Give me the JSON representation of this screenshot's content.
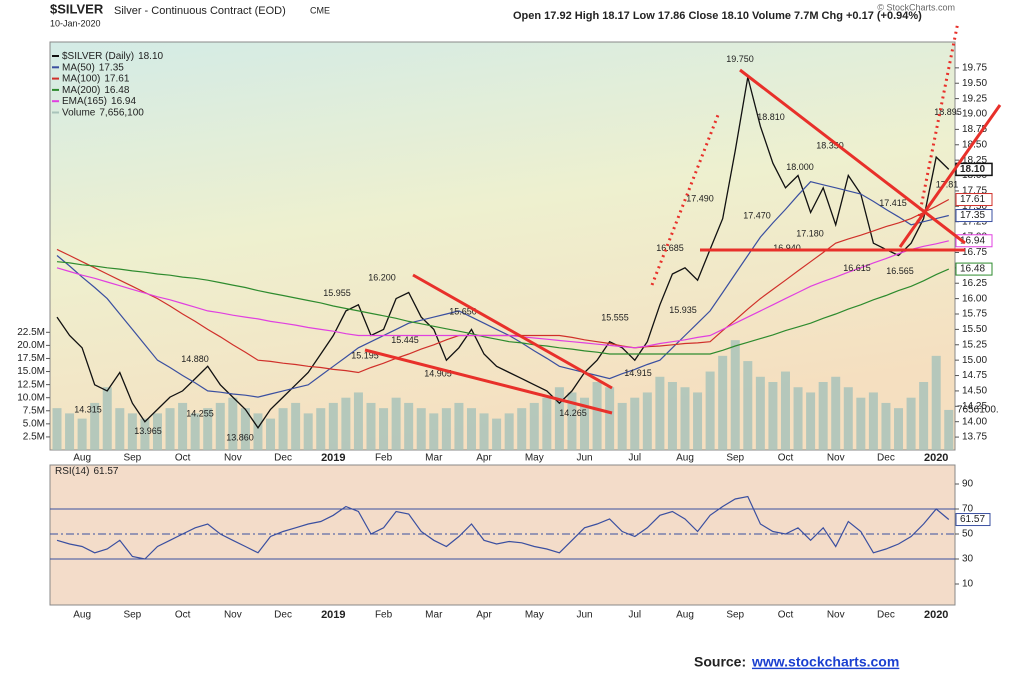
{
  "header": {
    "symbol": "$SILVER",
    "subtitle": "Silver - Continuous Contract (EOD)",
    "exchange": "CME",
    "date": "10-Jan-2020",
    "quote": "Open 17.92 High 18.17 Low 17.86 Close 18.10 Volume 7.7M Chg +0.17 (+0.94%)",
    "copyright": "© StockCharts.com"
  },
  "chart_data": [
    {
      "type": "line",
      "grid": false,
      "categories": [
        null,
        null,
        "Aug",
        null,
        null,
        null,
        "Sep",
        null,
        null,
        null,
        "Oct",
        null,
        null,
        null,
        "Nov",
        null,
        null,
        null,
        "Dec",
        null,
        null,
        null,
        "2019",
        null,
        null,
        null,
        "Feb",
        null,
        null,
        null,
        "Mar",
        null,
        null,
        null,
        "Apr",
        null,
        null,
        null,
        "May",
        null,
        null,
        null,
        "Jun",
        null,
        null,
        null,
        "Jul",
        null,
        null,
        null,
        "Aug",
        null,
        null,
        null,
        "Sep",
        null,
        null,
        null,
        "Oct",
        null,
        null,
        null,
        "Nov",
        null,
        null,
        null,
        "Dec",
        null,
        null,
        null,
        "2020",
        null
      ],
      "series": [
        {
          "name": "$SILVER (Daily)",
          "last_label": "18.10",
          "color": "#111111",
          "values": [
            15.7,
            15.4,
            15.2,
            14.6,
            14.5,
            14.8,
            14.3,
            14.0,
            14.2,
            14.4,
            14.5,
            14.7,
            14.9,
            14.6,
            14.4,
            14.2,
            13.9,
            14.2,
            14.4,
            14.6,
            14.8,
            15.1,
            15.4,
            15.8,
            15.9,
            15.4,
            15.5,
            16.0,
            16.1,
            15.7,
            15.5,
            15.0,
            15.2,
            15.5,
            15.1,
            14.9,
            14.8,
            14.7,
            14.6,
            14.5,
            14.3,
            14.5,
            14.8,
            15.0,
            15.3,
            15.2,
            15.0,
            15.3,
            15.9,
            16.4,
            16.5,
            16.3,
            16.8,
            17.3,
            18.4,
            19.6,
            18.8,
            18.2,
            17.8,
            18.0,
            17.4,
            17.8,
            17.2,
            18.0,
            17.7,
            16.9,
            16.8,
            16.7,
            16.9,
            17.3,
            18.3,
            18.1
          ]
        },
        {
          "name": "MA(50)",
          "last_label": "17.35",
          "color": "#3a4fa0",
          "values": [
            16.7,
            16.53,
            16.35,
            16.18,
            16.0,
            15.75,
            15.5,
            15.25,
            15.0,
            14.88,
            14.75,
            14.63,
            14.5,
            14.48,
            14.45,
            14.43,
            14.4,
            14.45,
            14.5,
            14.55,
            14.6,
            14.75,
            14.9,
            15.05,
            15.2,
            15.3,
            15.4,
            15.5,
            15.6,
            15.65,
            15.7,
            15.75,
            15.8,
            15.7,
            15.6,
            15.5,
            15.4,
            15.28,
            15.15,
            15.03,
            14.9,
            14.85,
            14.8,
            14.75,
            14.7,
            14.78,
            14.85,
            14.93,
            15.0,
            15.2,
            15.4,
            15.6,
            15.8,
            16.1,
            16.4,
            16.7,
            17.0,
            17.23,
            17.45,
            17.68,
            17.9,
            17.85,
            17.8,
            17.75,
            17.7,
            17.58,
            17.45,
            17.33,
            17.2,
            17.25,
            17.3,
            17.35
          ]
        },
        {
          "name": "MA(100)",
          "last_label": "17.61",
          "color": "#d0302a",
          "values": [
            16.8,
            16.7,
            16.6,
            16.5,
            16.4,
            16.3,
            16.2,
            16.1,
            16.0,
            15.88,
            15.75,
            15.63,
            15.5,
            15.38,
            15.25,
            15.13,
            15.0,
            14.98,
            14.95,
            14.93,
            14.9,
            14.88,
            14.85,
            14.83,
            14.8,
            14.88,
            14.95,
            15.03,
            15.1,
            15.18,
            15.25,
            15.33,
            15.4,
            15.4,
            15.4,
            15.4,
            15.4,
            15.4,
            15.4,
            15.4,
            15.4,
            15.37,
            15.33,
            15.3,
            15.27,
            15.23,
            15.2,
            15.22,
            15.23,
            15.25,
            15.27,
            15.28,
            15.3,
            15.48,
            15.65,
            15.83,
            16.0,
            16.15,
            16.3,
            16.45,
            16.6,
            16.75,
            16.9,
            16.97,
            17.03,
            17.1,
            17.17,
            17.23,
            17.3,
            17.4,
            17.5,
            17.61
          ]
        },
        {
          "name": "MA(200)",
          "last_label": "16.48",
          "color": "#2e8b2e",
          "values": [
            16.6,
            16.58,
            16.55,
            16.53,
            16.5,
            16.48,
            16.45,
            16.43,
            16.4,
            16.38,
            16.35,
            16.33,
            16.3,
            16.26,
            16.22,
            16.18,
            16.13,
            16.09,
            16.05,
            16.01,
            15.97,
            15.93,
            15.88,
            15.84,
            15.8,
            15.76,
            15.72,
            15.68,
            15.63,
            15.59,
            15.55,
            15.51,
            15.47,
            15.43,
            15.38,
            15.34,
            15.3,
            15.28,
            15.25,
            15.23,
            15.2,
            15.18,
            15.15,
            15.13,
            15.1,
            15.1,
            15.1,
            15.1,
            15.1,
            15.1,
            15.1,
            15.1,
            15.1,
            15.16,
            15.23,
            15.29,
            15.35,
            15.41,
            15.48,
            15.54,
            15.6,
            15.68,
            15.75,
            15.83,
            15.9,
            15.98,
            16.05,
            16.13,
            16.2,
            16.29,
            16.39,
            16.48
          ]
        },
        {
          "name": "EMA(165)",
          "last_label": "16.94",
          "color": "#e040e0",
          "values": [
            16.5,
            16.44,
            16.38,
            16.33,
            16.27,
            16.21,
            16.15,
            16.09,
            16.03,
            15.98,
            15.92,
            15.86,
            15.8,
            15.77,
            15.73,
            15.7,
            15.67,
            15.63,
            15.6,
            15.57,
            15.53,
            15.5,
            15.47,
            15.43,
            15.4,
            15.4,
            15.4,
            15.4,
            15.4,
            15.4,
            15.4,
            15.4,
            15.4,
            15.4,
            15.4,
            15.4,
            15.4,
            15.38,
            15.36,
            15.34,
            15.32,
            15.3,
            15.28,
            15.26,
            15.24,
            15.22,
            15.2,
            15.23,
            15.27,
            15.3,
            15.33,
            15.37,
            15.4,
            15.5,
            15.6,
            15.7,
            15.8,
            15.9,
            16.0,
            16.1,
            16.2,
            16.28,
            16.35,
            16.43,
            16.5,
            16.58,
            16.65,
            16.73,
            16.8,
            16.85,
            16.89,
            16.94
          ]
        },
        {
          "name": "Volume",
          "last_label": "7,656,100",
          "axis_label": "7656100.",
          "color": "#a9c3ba",
          "axis": "y2",
          "type": "bar",
          "values": [
            8,
            7,
            6,
            9,
            12,
            8,
            7,
            6,
            7,
            8,
            9,
            7,
            8,
            9,
            10,
            8,
            7,
            6,
            8,
            9,
            7,
            8,
            9,
            10,
            11,
            9,
            8,
            10,
            9,
            8,
            7,
            8,
            9,
            8,
            7,
            6,
            7,
            8,
            9,
            10,
            12,
            11,
            10,
            13,
            12,
            9,
            10,
            11,
            14,
            13,
            12,
            11,
            15,
            18,
            21,
            17,
            14,
            13,
            15,
            12,
            11,
            13,
            14,
            12,
            10,
            11,
            9,
            8,
            10,
            13,
            18,
            7.66
          ]
        }
      ],
      "ylim": [
        13.54,
        20.17
      ],
      "yticks": [
        13.75,
        {
          "value": 14,
          "label": "14.00"
        },
        14.25,
        {
          "value": 14.5,
          "label": "14.50"
        },
        14.75,
        {
          "value": 15,
          "label": "15.00"
        },
        15.25,
        {
          "value": 15.5,
          "label": "15.50"
        },
        15.75,
        {
          "value": 16,
          "label": "16.00"
        },
        16.25,
        {
          "value": 16.5,
          "label": "16.50"
        },
        16.75,
        {
          "value": 17,
          "label": "17.00"
        },
        17.25,
        {
          "value": 17.5,
          "label": "17.50"
        },
        17.75,
        {
          "value": 18,
          "label": "18.00"
        },
        18.25,
        {
          "value": 18.5,
          "label": "18.50"
        },
        18.75,
        {
          "value": 19,
          "label": "19.00"
        },
        19.25,
        {
          "value": 19.5,
          "label": "19.50"
        },
        19.75
      ],
      "y2lim": [
        0,
        78
      ],
      "y2ticks": [
        {
          "value": 2.5,
          "label": "2.5M"
        },
        {
          "value": 5,
          "label": "5.0M"
        },
        {
          "value": 7.5,
          "label": "7.5M"
        },
        {
          "value": 10,
          "label": "10.0M"
        },
        {
          "value": 12.5,
          "label": "12.5M"
        },
        {
          "value": 15,
          "label": "15.0M"
        },
        {
          "value": 17.5,
          "label": "17.5M"
        },
        {
          "value": 20,
          "label": "20.0M"
        },
        {
          "value": 22.5,
          "label": "22.5M"
        }
      ],
      "annotations": [
        {
          "label": "14.315",
          "value": 14.315
        },
        {
          "label": "13.965",
          "value": 13.965
        },
        {
          "label": "14.255",
          "value": 14.255
        },
        {
          "label": "14.880",
          "value": 14.88
        },
        {
          "label": "13.860",
          "value": 13.86
        },
        {
          "label": "15.955",
          "value": 15.955
        },
        {
          "label": "15.195",
          "value": 15.195
        },
        {
          "label": "16.200",
          "value": 16.2
        },
        {
          "label": "15.445",
          "value": 15.445
        },
        {
          "label": "14.905",
          "value": 14.905
        },
        {
          "label": "15.650",
          "value": 15.65
        },
        {
          "label": "14.265",
          "value": 14.265
        },
        {
          "label": "15.555",
          "value": 15.555
        },
        {
          "label": "14.915",
          "value": 14.915
        },
        {
          "label": "16.685",
          "value": 16.685
        },
        {
          "label": "15.935",
          "value": 15.935
        },
        {
          "label": "17.490",
          "value": 17.49
        },
        {
          "label": "19.750",
          "value": 19.75
        },
        {
          "label": "18.810",
          "value": 18.81
        },
        {
          "label": "17.470",
          "value": 17.47
        },
        {
          "label": "18.000",
          "value": 18.0
        },
        {
          "label": "16.940",
          "value": 16.94
        },
        {
          "label": "17.180",
          "value": 17.18
        },
        {
          "label": "18.350",
          "value": 18.35
        },
        {
          "label": "16.615",
          "value": 16.615
        },
        {
          "label": "16.565",
          "value": 16.565
        },
        {
          "label": "17.415",
          "value": 17.415
        },
        {
          "label": "18.895",
          "value": 18.895
        },
        {
          "label": "17.81",
          "value": 17.81
        }
      ]
    },
    {
      "type": "line",
      "title": "RSI(14)",
      "last_label": "61.57",
      "color": "#3a4fa0",
      "categories": [
        null,
        null,
        "Aug",
        null,
        null,
        null,
        "Sep",
        null,
        null,
        null,
        "Oct",
        null,
        null,
        null,
        "Nov",
        null,
        null,
        null,
        "Dec",
        null,
        null,
        null,
        "2019",
        null,
        null,
        null,
        "Feb",
        null,
        null,
        null,
        "Mar",
        null,
        null,
        null,
        "Apr",
        null,
        null,
        null,
        "May",
        null,
        null,
        null,
        "Jun",
        null,
        null,
        null,
        "Jul",
        null,
        null,
        null,
        "Aug",
        null,
        null,
        null,
        "Sep",
        null,
        null,
        null,
        "Oct",
        null,
        null,
        null,
        "Nov",
        null,
        null,
        null,
        "Dec",
        null,
        null,
        null,
        "2020",
        null
      ],
      "values": [
        45,
        42,
        40,
        35,
        38,
        45,
        32,
        30,
        40,
        45,
        50,
        55,
        58,
        50,
        45,
        40,
        35,
        48,
        52,
        55,
        58,
        60,
        65,
        72,
        68,
        50,
        55,
        68,
        66,
        52,
        45,
        40,
        48,
        58,
        45,
        42,
        44,
        43,
        40,
        38,
        35,
        45,
        55,
        58,
        62,
        52,
        48,
        55,
        65,
        68,
        62,
        52,
        65,
        72,
        78,
        80,
        58,
        52,
        50,
        55,
        45,
        55,
        40,
        60,
        52,
        35,
        38,
        42,
        48,
        58,
        70,
        61.57
      ],
      "ylim": [
        -6.8,
        105.2
      ],
      "yticks": [
        10,
        30,
        50,
        70,
        90
      ],
      "reference_lines": [
        30,
        50,
        70
      ]
    }
  ],
  "source": {
    "label": "Source:",
    "link": "www.stockcharts.com"
  }
}
